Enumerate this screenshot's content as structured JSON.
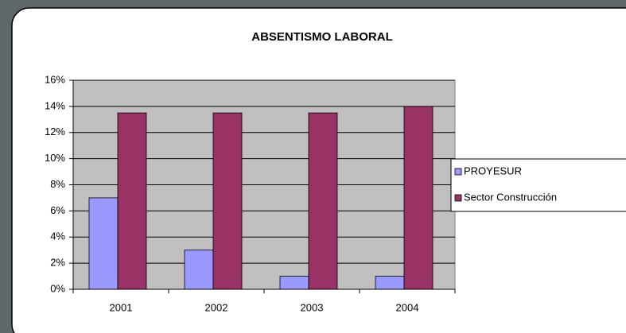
{
  "chart_data": {
    "type": "bar",
    "title": "ABSENTISMO LABORAL",
    "categories": [
      "2001",
      "2002",
      "2003",
      "2004"
    ],
    "series": [
      {
        "name": "PROYESUR",
        "color": "#9999ff",
        "values": [
          7,
          3,
          1,
          1
        ]
      },
      {
        "name": "Sector Construcción",
        "color": "#993366",
        "values": [
          13.5,
          13.5,
          13.5,
          14
        ]
      }
    ],
    "ylim": [
      0,
      16
    ],
    "yticks": [
      {
        "value": 0,
        "label": "0%"
      },
      {
        "value": 2,
        "label": "2%"
      },
      {
        "value": 4,
        "label": "4%"
      },
      {
        "value": 6,
        "label": "6%"
      },
      {
        "value": 8,
        "label": "8%"
      },
      {
        "value": 10,
        "label": "10%"
      },
      {
        "value": 12,
        "label": "12%"
      },
      {
        "value": 14,
        "label": "14%"
      },
      {
        "value": 16,
        "label": "16%"
      }
    ],
    "grid": true,
    "legend": "right"
  }
}
